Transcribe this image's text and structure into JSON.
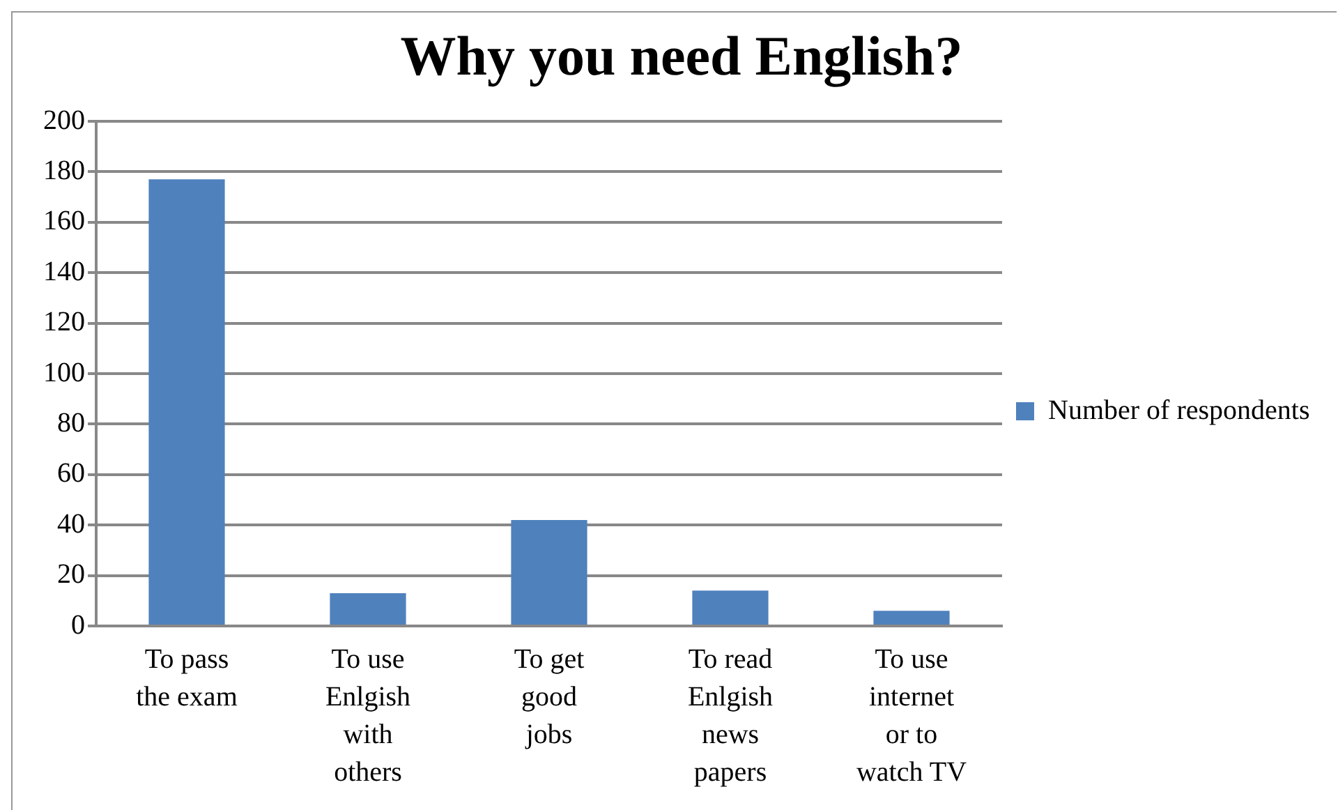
{
  "chart_data": {
    "type": "bar",
    "title": "Why you need English?",
    "categories": [
      "To pass the exam",
      "To use Enlgish with others",
      "To get good jobs",
      "To read Enlgish news papers",
      "To use internet or to watch TV"
    ],
    "series": [
      {
        "name": "Number of respondents",
        "color": "#4f81bd",
        "values": [
          177,
          13,
          42,
          14,
          6
        ]
      }
    ],
    "ylim": [
      0,
      200
    ],
    "yticks": [
      0,
      20,
      40,
      60,
      80,
      100,
      120,
      140,
      160,
      180,
      200
    ],
    "grid": "y",
    "legend": "right"
  }
}
